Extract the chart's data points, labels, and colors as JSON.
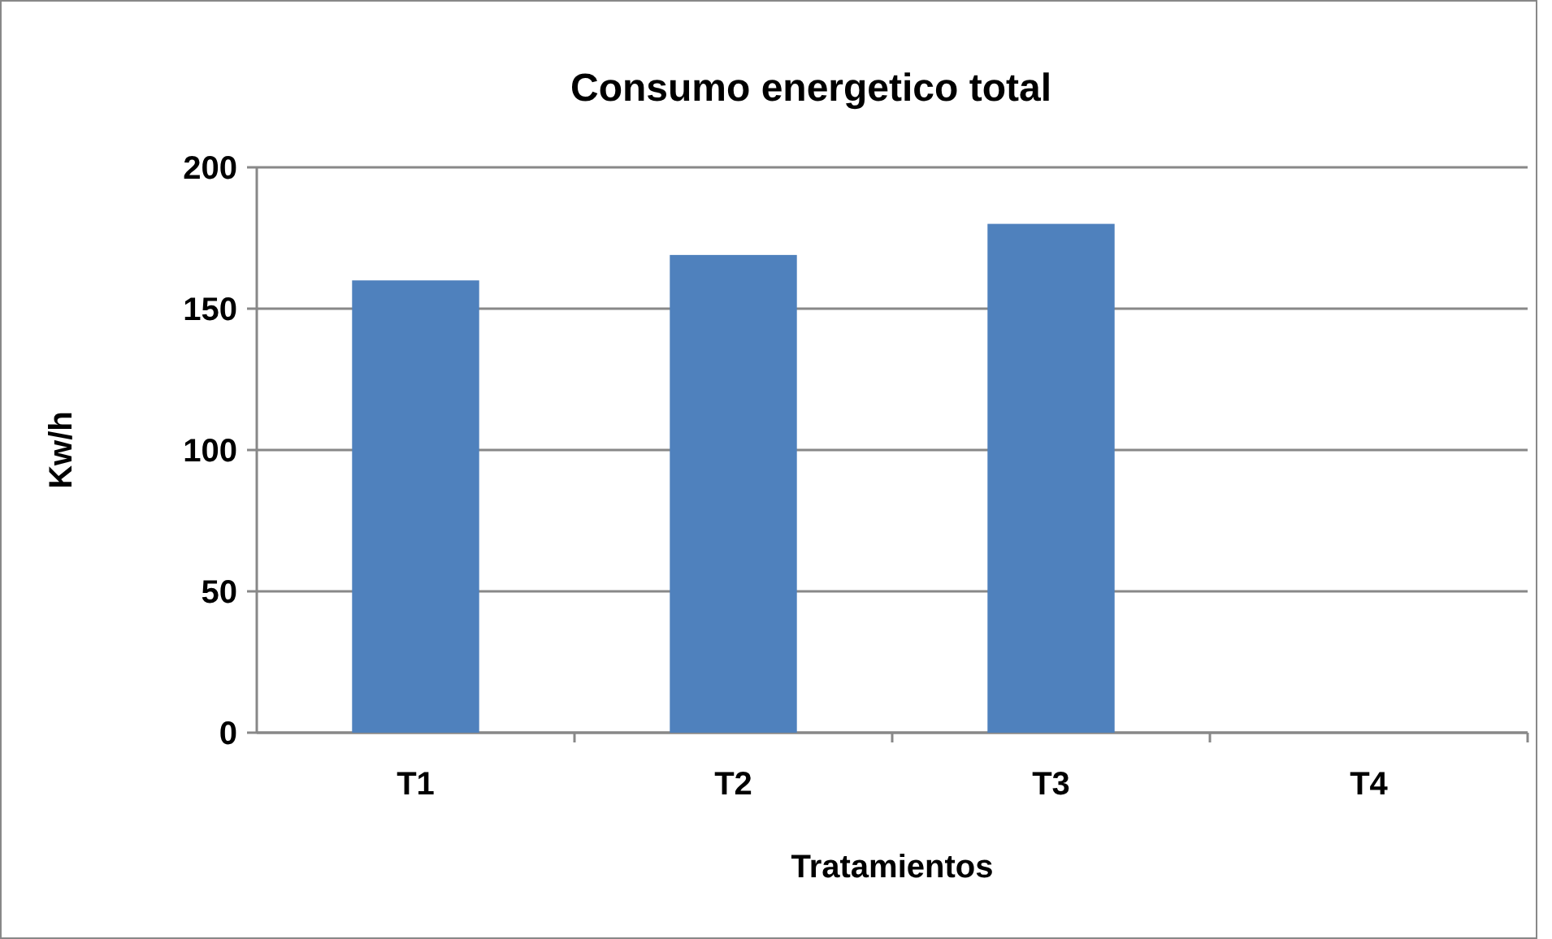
{
  "chart_data": {
    "type": "bar",
    "title": "Consumo energetico total",
    "xlabel": "Tratamientos",
    "ylabel": "Kw/h",
    "categories": [
      "T1",
      "T2",
      "T3",
      "T4"
    ],
    "values": [
      160,
      169,
      180,
      null
    ],
    "color": "#4f81bd",
    "ylim": [
      0,
      200
    ],
    "yticks": [
      0,
      50,
      100,
      150,
      200
    ],
    "grid": "y"
  }
}
